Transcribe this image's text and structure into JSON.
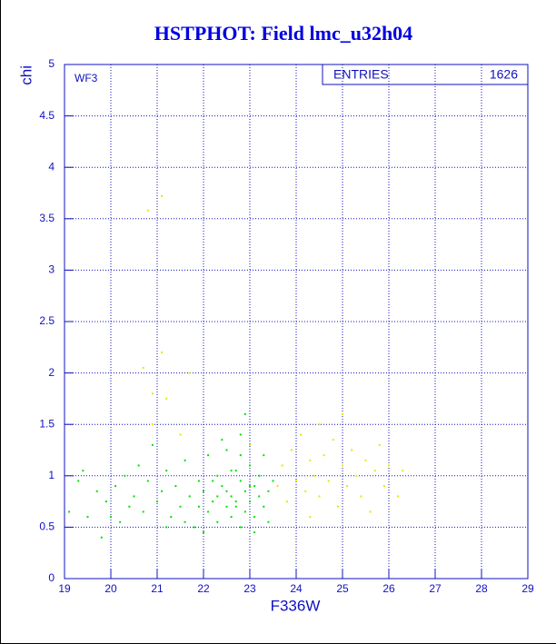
{
  "chart_data": {
    "type": "scatter",
    "title": "HSTPHOT: Field lmc_u32h04",
    "x_label": "F336W",
    "y_label": "chi",
    "annotation": "WF3",
    "stats_label": "ENTRIES",
    "stats_value": "1626",
    "xlim": [
      19,
      29
    ],
    "ylim": [
      0,
      5
    ],
    "xticks": [
      19,
      20,
      21,
      22,
      23,
      24,
      25,
      26,
      27,
      28,
      29
    ],
    "yticks": [
      0,
      0.5,
      1,
      1.5,
      2,
      2.5,
      3,
      3.5,
      4,
      4.5,
      5
    ],
    "grid": true,
    "series": [
      {
        "color": "#00e000",
        "x": [
          19.1,
          19.3,
          19.4,
          19.5,
          19.7,
          19.8,
          19.9,
          20.1,
          20.2,
          20.3,
          20.4,
          20.5,
          20.6,
          20.7,
          20.8,
          20.9,
          21.0,
          21.1,
          21.2,
          21.3,
          21.4,
          21.5,
          21.6,
          21.7,
          21.8,
          21.9,
          22.0,
          22.1,
          22.1,
          22.2,
          22.3,
          22.3,
          22.4,
          22.5,
          22.5,
          22.6,
          22.6,
          22.7,
          22.7,
          22.8,
          22.8,
          22.8,
          22.9,
          22.9,
          23.0,
          23.0,
          23.1,
          23.1,
          23.2,
          23.2,
          23.3,
          23.3,
          23.4,
          23.4,
          23.5,
          22.4,
          22.0,
          21.6,
          22.9,
          22.2,
          23.1,
          22.6,
          21.9,
          22.5,
          23.0,
          22.7,
          22.3,
          20.0,
          21.2,
          22.8
        ],
        "values": [
          0.65,
          0.95,
          1.05,
          0.6,
          0.85,
          0.4,
          0.75,
          0.9,
          0.55,
          1.0,
          0.7,
          0.8,
          1.1,
          0.65,
          0.95,
          1.3,
          0.75,
          0.85,
          1.05,
          0.6,
          0.9,
          0.7,
          1.15,
          0.8,
          0.5,
          0.95,
          0.85,
          1.2,
          0.65,
          0.75,
          1.0,
          0.55,
          0.9,
          0.7,
          1.25,
          0.8,
          0.6,
          1.05,
          0.75,
          0.95,
          1.4,
          0.5,
          0.85,
          0.65,
          1.1,
          0.75,
          0.9,
          0.6,
          1.0,
          0.8,
          0.7,
          1.2,
          0.85,
          0.55,
          0.95,
          1.35,
          0.45,
          0.55,
          1.6,
          0.95,
          0.45,
          1.05,
          0.7,
          0.85,
          0.9,
          0.7,
          0.8,
          0.6,
          0.5,
          1.2
        ]
      },
      {
        "color": "#e6e600",
        "x": [
          23.6,
          23.7,
          23.8,
          23.9,
          24.0,
          24.1,
          24.2,
          24.3,
          24.4,
          24.5,
          24.5,
          24.6,
          24.7,
          24.8,
          24.9,
          25.0,
          25.1,
          25.2,
          25.3,
          25.4,
          25.5,
          25.6,
          25.7,
          25.8,
          25.9,
          26.0,
          26.2,
          26.3,
          24.3,
          25.0,
          20.8,
          21.1,
          21.1,
          20.7,
          20.9,
          21.2,
          21.7,
          21.5,
          20.9,
          23.0
        ],
        "values": [
          0.9,
          1.1,
          0.75,
          1.25,
          0.95,
          1.4,
          0.85,
          1.15,
          1.0,
          1.5,
          0.8,
          1.2,
          0.95,
          1.35,
          0.7,
          1.1,
          0.9,
          1.25,
          1.0,
          0.8,
          1.15,
          0.65,
          1.05,
          1.3,
          0.9,
          1.1,
          0.8,
          1.05,
          0.6,
          1.6,
          3.58,
          3.72,
          2.2,
          2.05,
          1.8,
          1.75,
          2.0,
          1.4,
          1.5,
          1.3
        ]
      }
    ]
  }
}
